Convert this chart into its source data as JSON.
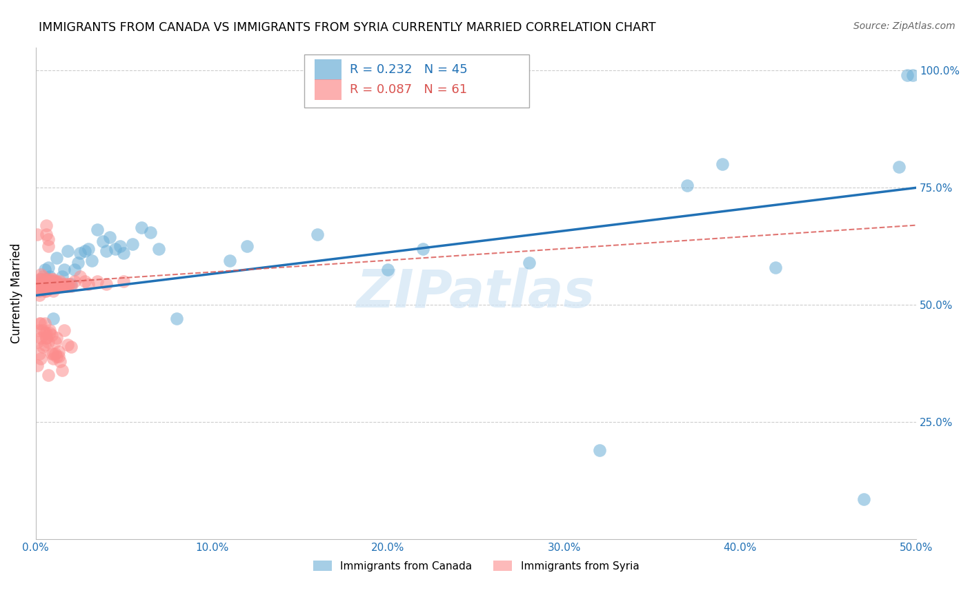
{
  "title": "IMMIGRANTS FROM CANADA VS IMMIGRANTS FROM SYRIA CURRENTLY MARRIED CORRELATION CHART",
  "source": "Source: ZipAtlas.com",
  "ylabel": "Currently Married",
  "xlim": [
    0.0,
    0.5
  ],
  "ylim": [
    0.0,
    1.05
  ],
  "yticks": [
    0.25,
    0.5,
    0.75,
    1.0
  ],
  "xticks": [
    0.0,
    0.1,
    0.2,
    0.3,
    0.4,
    0.5
  ],
  "canada_color": "#6baed6",
  "syria_color": "#fc8d8d",
  "canada_line_color": "#2171b5",
  "syria_line_color": "#d9534f",
  "canada_R": 0.232,
  "canada_N": 45,
  "syria_R": 0.087,
  "syria_N": 61,
  "legend_label_canada": "Immigrants from Canada",
  "legend_label_syria": "Immigrants from Syria",
  "watermark": "ZIPatlas",
  "canada_x": [
    0.002,
    0.003,
    0.005,
    0.006,
    0.007,
    0.008,
    0.009,
    0.01,
    0.012,
    0.015,
    0.016,
    0.018,
    0.02,
    0.022,
    0.024,
    0.025,
    0.028,
    0.03,
    0.032,
    0.035,
    0.038,
    0.04,
    0.042,
    0.045,
    0.048,
    0.05,
    0.055,
    0.06,
    0.065,
    0.07,
    0.08,
    0.11,
    0.12,
    0.16,
    0.2,
    0.22,
    0.28,
    0.32,
    0.37,
    0.39,
    0.42,
    0.47,
    0.49,
    0.495,
    0.498
  ],
  "canada_y": [
    0.535,
    0.555,
    0.575,
    0.555,
    0.58,
    0.56,
    0.55,
    0.47,
    0.6,
    0.56,
    0.575,
    0.615,
    0.545,
    0.575,
    0.59,
    0.61,
    0.615,
    0.62,
    0.595,
    0.66,
    0.635,
    0.615,
    0.645,
    0.62,
    0.625,
    0.61,
    0.63,
    0.665,
    0.655,
    0.62,
    0.47,
    0.595,
    0.625,
    0.65,
    0.575,
    0.62,
    0.59,
    0.19,
    0.755,
    0.8,
    0.58,
    0.085,
    0.795,
    0.99,
    0.99
  ],
  "syria_x": [
    0.001,
    0.001,
    0.002,
    0.002,
    0.002,
    0.003,
    0.003,
    0.003,
    0.003,
    0.004,
    0.004,
    0.004,
    0.005,
    0.005,
    0.005,
    0.005,
    0.006,
    0.006,
    0.006,
    0.006,
    0.007,
    0.007,
    0.007,
    0.007,
    0.007,
    0.008,
    0.008,
    0.008,
    0.008,
    0.009,
    0.009,
    0.009,
    0.01,
    0.01,
    0.01,
    0.01,
    0.011,
    0.011,
    0.012,
    0.012,
    0.012,
    0.013,
    0.013,
    0.014,
    0.014,
    0.015,
    0.015,
    0.016,
    0.016,
    0.017,
    0.018,
    0.018,
    0.019,
    0.02,
    0.022,
    0.025,
    0.028,
    0.03,
    0.035,
    0.04,
    0.05
  ],
  "syria_y": [
    0.545,
    0.65,
    0.555,
    0.52,
    0.53,
    0.545,
    0.565,
    0.535,
    0.54,
    0.545,
    0.555,
    0.56,
    0.555,
    0.54,
    0.53,
    0.545,
    0.65,
    0.67,
    0.545,
    0.53,
    0.625,
    0.64,
    0.555,
    0.545,
    0.535,
    0.545,
    0.545,
    0.535,
    0.55,
    0.55,
    0.545,
    0.555,
    0.545,
    0.555,
    0.54,
    0.53,
    0.54,
    0.55,
    0.545,
    0.54,
    0.55,
    0.54,
    0.545,
    0.54,
    0.55,
    0.545,
    0.54,
    0.54,
    0.545,
    0.54,
    0.545,
    0.54,
    0.545,
    0.54,
    0.55,
    0.56,
    0.55,
    0.545,
    0.55,
    0.545,
    0.55
  ],
  "syria_y_low": [
    0.37,
    0.42,
    0.395,
    0.445,
    0.46,
    0.385,
    0.43,
    0.46,
    0.41,
    0.445,
    0.44,
    0.46,
    0.415,
    0.43,
    0.44,
    0.43,
    0.35,
    0.42,
    0.44,
    0.445,
    0.395,
    0.435,
    0.385,
    0.395,
    0.395,
    0.42,
    0.39,
    0.43,
    0.39,
    0.4,
    0.38,
    0.36,
    0.445,
    0.415,
    0.41
  ],
  "syria_x_low": [
    0.001,
    0.001,
    0.002,
    0.002,
    0.002,
    0.003,
    0.003,
    0.003,
    0.004,
    0.004,
    0.005,
    0.005,
    0.005,
    0.006,
    0.006,
    0.006,
    0.007,
    0.007,
    0.008,
    0.008,
    0.009,
    0.009,
    0.01,
    0.01,
    0.011,
    0.011,
    0.012,
    0.012,
    0.013,
    0.013,
    0.014,
    0.015,
    0.016,
    0.018,
    0.02
  ]
}
